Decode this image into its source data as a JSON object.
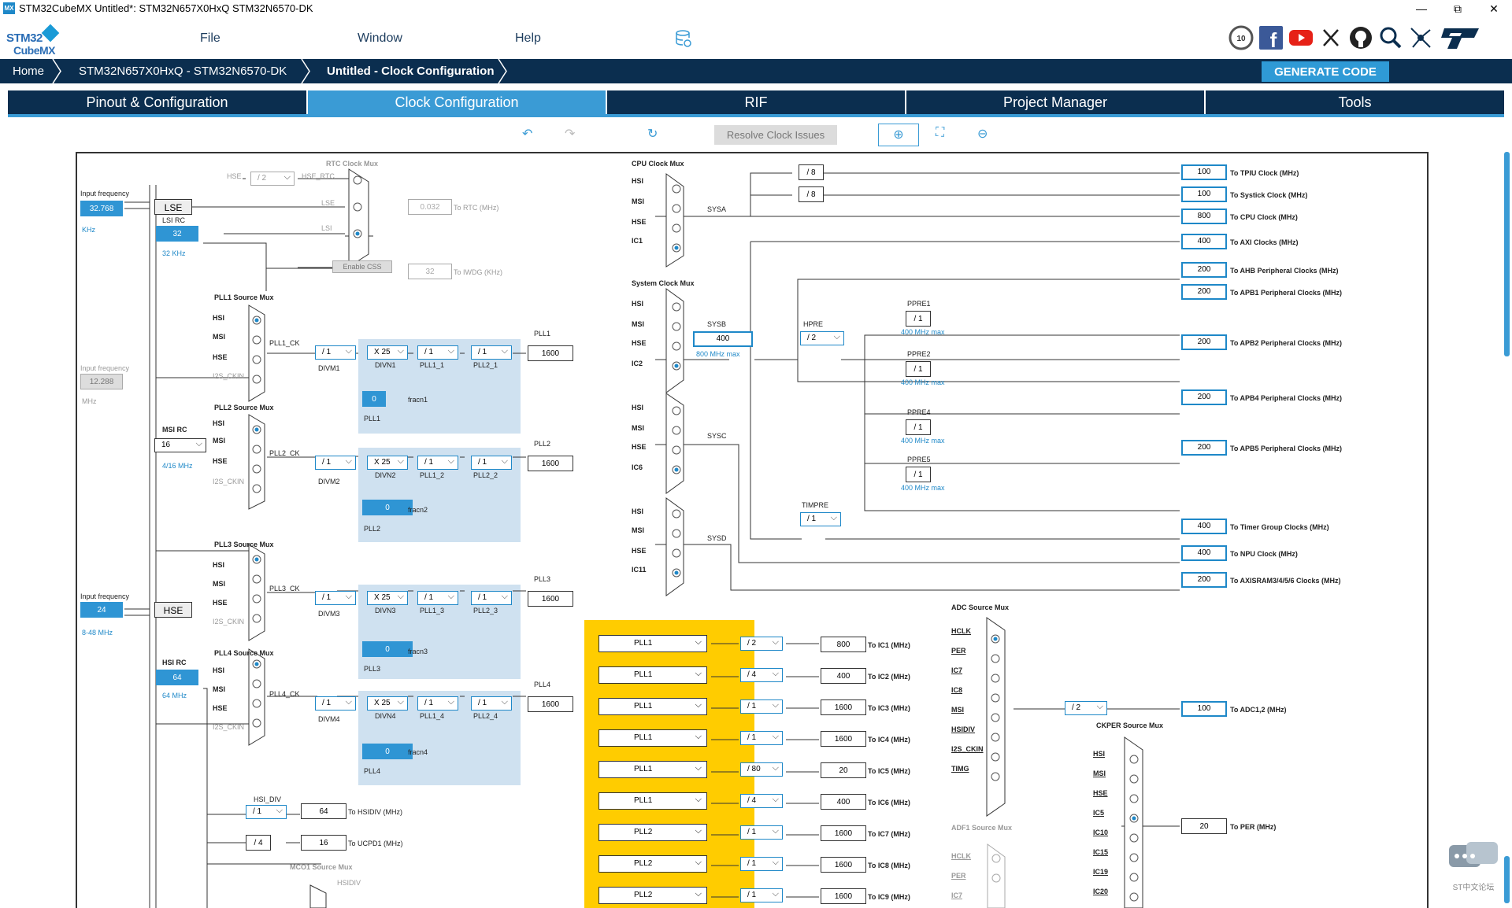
{
  "window": {
    "title": "STM32CubeMX Untitled*: STM32N657X0HxQ STM32N6570-DK",
    "icon_text": "MX",
    "controls": [
      "—",
      "⧉",
      "✕"
    ]
  },
  "logo": {
    "line1": "STM32",
    "line2": "CubeMX"
  },
  "menu": {
    "file": "File",
    "window": "Window",
    "help": "Help"
  },
  "social_icons": [
    "10-years-icon",
    "facebook-icon",
    "youtube-icon",
    "x-icon",
    "github-icon",
    "search-icon",
    "network-icon",
    "st-logo-icon"
  ],
  "breadcrumb": {
    "home": "Home",
    "device": "STM32N657X0HxQ  -  STM32N6570-DK",
    "current": "Untitled - Clock Configuration"
  },
  "generate_button": "GENERATE CODE",
  "tabs": [
    {
      "label": "Pinout & Configuration",
      "active": false
    },
    {
      "label": "Clock Configuration",
      "active": true
    },
    {
      "label": "RIF",
      "active": false
    },
    {
      "label": "Project Manager",
      "active": false
    },
    {
      "label": "Tools",
      "active": false
    }
  ],
  "toolbar": {
    "resolve": "Resolve Clock Issues"
  },
  "colors": {
    "navy": "#0b2e4f",
    "accent": "#3a9bd5",
    "yellow": "#ffcc00",
    "panel": "#cfe1f0"
  },
  "clock": {
    "rtc_mux_title": "RTC Clock Mux",
    "hse": "HSE",
    "hse_div": "/ 2",
    "hse_rtc": "HSE_RTC",
    "lse": "LSE",
    "lsi": "LSI",
    "rtc_value": "0.032",
    "to_rtc": "To RTC (MHz)",
    "input_freq_label": "Input frequency",
    "lse_freq": "32.768",
    "khz": "KHz",
    "lse_box": "LSE",
    "lsi_rc": "LSI RC",
    "lsi_value": "32",
    "lsi_unit": "32 KHz",
    "enable_css": "Enable CSS",
    "iwdg_value": "32",
    "to_iwdg": "To IWDG (KHz)",
    "pll1_mux": "PLL1 Source Mux",
    "pll2_mux": "PLL2 Source Mux",
    "pll3_mux": "PLL3 Source Mux",
    "pll4_mux": "PLL4 Source Mux",
    "hsi": "HSI",
    "msi": "MSI",
    "i2s_ckin": "I2S_CKIN",
    "pll1_ck": "PLL1_CK",
    "pll2_ck": "PLL2_CK",
    "pll3_ck": "PLL3_CK",
    "pll4_ck": "PLL4_CK",
    "div1": "/ 1",
    "x25": "X 25",
    "divm1": "DIVM1",
    "divm2": "DIVM2",
    "divm3": "DIVM3",
    "divm4": "DIVM4",
    "divn1": "DIVN1",
    "divn2": "DIVN2",
    "divn3": "DIVN3",
    "divn4": "DIVN4",
    "pll1_1": "PLL1_1",
    "pll2_1": "PLL2_1",
    "pll1_2": "PLL1_2",
    "pll2_2": "PLL2_2",
    "pll1_3": "PLL1_3",
    "pll2_3": "PLL2_3",
    "pll1_4": "PLL1_4",
    "pll2_4": "PLL2_4",
    "pll1": "PLL1",
    "pll2": "PLL2",
    "pll3": "PLL3",
    "pll4": "PLL4",
    "pll_out": "1600",
    "frac_val": "0",
    "fracn1": "fracn1",
    "fracn2": "fracn2",
    "fracn3": "fracn3",
    "fracn4": "fracn4",
    "input_freq2": "12.288",
    "mhz": "MHz",
    "msi_rc": "MSI RC",
    "msi_val": "16",
    "msi_range": "4/16 MHz",
    "hse_freq": "24",
    "hse_box": "HSE",
    "hse_range": "8-48 MHz",
    "hsi_rc": "HSI RC",
    "hsi_val": "64",
    "hsi_unit": "64 MHz",
    "hsi_div": "HSI_DIV",
    "hsidiv_val": "64",
    "to_hsidiv": "To HSIDIV (MHz)",
    "div4": "/ 4",
    "ucpd_val": "16",
    "to_ucpd": "To UCPD1 (MHz)",
    "mco1_mux": "MCO1 Source Mux",
    "hsidiv": "HSIDIV",
    "cpu_mux": "CPU Clock Mux",
    "sys_mux": "System Clock Mux",
    "ic1": "IC1",
    "ic2": "IC2",
    "ic6": "IC6",
    "ic11": "IC11",
    "sysa": "SYSA",
    "sysb": "SYSB",
    "sysc": "SYSC",
    "sysd": "SYSD",
    "div8": "/ 8",
    "sysb_val": "400",
    "sysb_max": "800 MHz max",
    "hpre": "HPRE",
    "hpre_div": "/ 2",
    "ppre1": "PPRE1",
    "ppre2": "PPRE2",
    "ppre4": "PPRE4",
    "ppre5": "PPRE5",
    "max400": "400 MHz max",
    "timpre": "TIMPRE",
    "outputs": [
      {
        "value": "100",
        "label": "To TPIU Clock (MHz)"
      },
      {
        "value": "100",
        "label": "To Systick Clock (MHz)"
      },
      {
        "value": "800",
        "label": "To CPU Clock (MHz)"
      },
      {
        "value": "400",
        "label": "To AXI Clocks (MHz)"
      },
      {
        "value": "200",
        "label": "To AHB Peripheral Clocks (MHz)"
      },
      {
        "value": "200",
        "label": "To APB1 Peripheral Clocks (MHz)"
      },
      {
        "value": "200",
        "label": "To APB2 Peripheral Clocks (MHz)"
      },
      {
        "value": "200",
        "label": "To APB4 Peripheral Clocks (MHz)"
      },
      {
        "value": "200",
        "label": "To APB5 Peripheral Clocks (MHz)"
      },
      {
        "value": "400",
        "label": "To Timer Group Clocks (MHz)"
      },
      {
        "value": "400",
        "label": "To NPU Clock (MHz)"
      },
      {
        "value": "200",
        "label": "To AXISRAM3/4/5/6 Clocks (MHz)"
      }
    ],
    "ic_rows": [
      {
        "src": "PLL1",
        "div": "/ 2",
        "value": "800",
        "label": "To IC1 (MHz)"
      },
      {
        "src": "PLL1",
        "div": "/ 4",
        "value": "400",
        "label": "To IC2 (MHz)"
      },
      {
        "src": "PLL1",
        "div": "/ 1",
        "value": "1600",
        "label": "To IC3 (MHz)"
      },
      {
        "src": "PLL1",
        "div": "/ 1",
        "value": "1600",
        "label": "To IC4 (MHz)"
      },
      {
        "src": "PLL1",
        "div": "/ 80",
        "value": "20",
        "label": "To IC5 (MHz)"
      },
      {
        "src": "PLL1",
        "div": "/ 4",
        "value": "400",
        "label": "To IC6 (MHz)"
      },
      {
        "src": "PLL2",
        "div": "/ 1",
        "value": "1600",
        "label": "To IC7 (MHz)"
      },
      {
        "src": "PLL2",
        "div": "/ 1",
        "value": "1600",
        "label": "To IC8 (MHz)"
      },
      {
        "src": "PLL2",
        "div": "/ 1",
        "value": "1600",
        "label": "To IC9 (MHz)"
      }
    ],
    "adc_mux": "ADC Source Mux",
    "adc_inputs": [
      "HCLK",
      "PER",
      "IC7",
      "IC8",
      "MSI",
      "HSIDIV",
      "I2S_CKIN",
      "TIMG"
    ],
    "adc_div": "/ 2",
    "adc_val": "100",
    "to_adc": "To ADC1,2 (MHz)",
    "adf1_mux": "ADF1 Source Mux",
    "adf1_inputs": [
      "HCLK",
      "PER",
      "IC7"
    ],
    "ckper_mux": "CKPER Source Mux",
    "ckper_inputs": [
      "HSI",
      "MSI",
      "HSE",
      "IC5",
      "IC10",
      "IC15",
      "IC19",
      "IC20"
    ],
    "per_val": "20",
    "to_per": "To PER (MHz)"
  },
  "chat_badge": "ST中文论坛"
}
